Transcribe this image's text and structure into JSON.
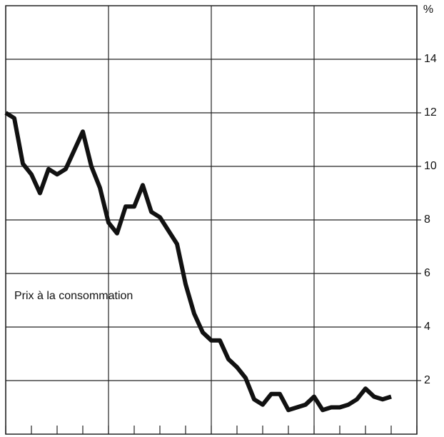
{
  "chart_data": {
    "type": "line",
    "y_label": "%",
    "annotation": "Prix à la consommation",
    "x": [
      0,
      1,
      2,
      3,
      4,
      5,
      6,
      7,
      8,
      9,
      10,
      11,
      12,
      13,
      14,
      15,
      16,
      17,
      18,
      19,
      20,
      21,
      22,
      23,
      24,
      25,
      26,
      27,
      28,
      29,
      30,
      31,
      32,
      33,
      34,
      35,
      36,
      37,
      38,
      39,
      40,
      41,
      42,
      43,
      44,
      45
    ],
    "series": [
      {
        "color": "#111111",
        "values": [
          12.0,
          11.8,
          10.1,
          9.7,
          9.0,
          9.9,
          9.7,
          9.9,
          10.6,
          11.3,
          10.0,
          9.2,
          7.9,
          7.5,
          8.5,
          8.5,
          9.3,
          8.3,
          8.1,
          7.6,
          7.1,
          5.6,
          4.5,
          3.8,
          3.5,
          3.5,
          2.8,
          2.5,
          2.1,
          1.3,
          1.1,
          1.5,
          1.5,
          0.9,
          1.0,
          1.1,
          1.4,
          0.9,
          1.0,
          1.0,
          1.1,
          1.3,
          1.7,
          1.4,
          1.3,
          1.4
        ]
      }
    ],
    "xlim": [
      0,
      48
    ],
    "xticks": [
      0,
      3,
      6,
      9,
      12,
      15,
      18,
      21,
      24,
      27,
      30,
      33,
      36,
      39,
      42,
      45,
      48
    ],
    "xgrid": [
      0,
      12,
      24,
      36,
      48
    ],
    "ylim": [
      0,
      16
    ],
    "yticks": [
      2,
      4,
      6,
      8,
      10,
      12,
      14
    ],
    "grid": true
  }
}
